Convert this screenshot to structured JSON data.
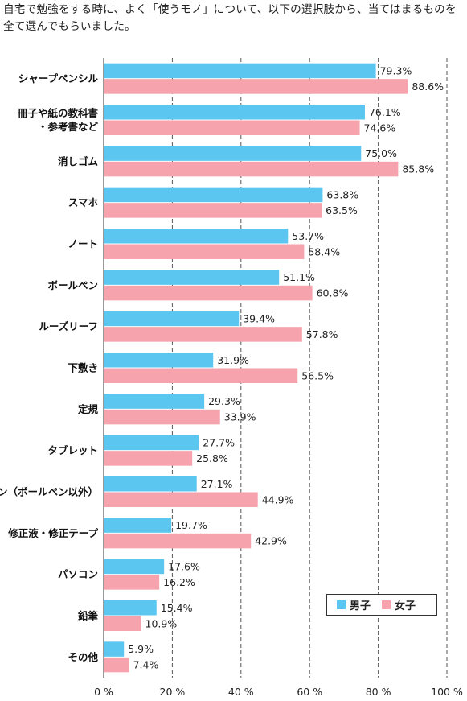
{
  "title": "自宅で勉強をする時に、よく「使うモノ」について、以下の選択肢から、当てはまるものを全て選んでもらいました。",
  "colors": {
    "male": "#5bc6f0",
    "female": "#f6a3ad",
    "grid": "#555555"
  },
  "chart_data": {
    "type": "bar",
    "orientation": "horizontal",
    "categories": [
      [
        "シャープペンシル"
      ],
      [
        "冊子や紙の教科書",
        "・参考書など"
      ],
      [
        "消しゴム"
      ],
      [
        "スマホ"
      ],
      [
        "ノート"
      ],
      [
        "ボールペン"
      ],
      [
        "ルーズリーフ"
      ],
      [
        "下敷き"
      ],
      [
        "定規"
      ],
      [
        "タブレット"
      ],
      [
        "ペン（ボールペン以外）"
      ],
      [
        "修正液・修正テープ"
      ],
      [
        "パソコン"
      ],
      [
        "鉛筆"
      ],
      [
        "その他"
      ]
    ],
    "series": [
      {
        "name": "男子",
        "color": "#5bc6f0",
        "values": [
          79.3,
          76.1,
          75.0,
          63.8,
          53.7,
          51.1,
          39.4,
          31.9,
          29.3,
          27.7,
          27.1,
          19.7,
          17.6,
          15.4,
          5.9
        ],
        "labels": [
          "79.3%",
          "76.1%",
          "75.0%",
          "63.8%",
          "53.7%",
          "51.1%",
          "39.4%",
          "31.9%",
          "29.3%",
          "27.7%",
          "27.1%",
          "19.7%",
          "17.6%",
          "15.4%",
          "5.9%"
        ]
      },
      {
        "name": "女子",
        "color": "#f6a3ad",
        "values": [
          88.6,
          74.6,
          85.8,
          63.5,
          58.4,
          60.8,
          57.8,
          56.5,
          33.9,
          25.8,
          44.9,
          42.9,
          16.2,
          10.9,
          7.4
        ],
        "labels": [
          "88.6%",
          "74.6%",
          "85.8%",
          "63.5%",
          "58.4%",
          "60.8%",
          "57.8%",
          "56.5%",
          "33.9%",
          "25.8%",
          "44.9%",
          "42.9%",
          "16.2%",
          "10.9%",
          "7.4%"
        ]
      }
    ],
    "xlim": [
      0,
      100
    ],
    "ticks": [
      0,
      20,
      40,
      60,
      80,
      100
    ],
    "tick_labels": [
      "0 %",
      "20 %",
      "40 %",
      "60 %",
      "80 %",
      "100 %"
    ],
    "grid": "vertical dashed",
    "legend": {
      "position": "bottom-right",
      "items": [
        "男子",
        "女子"
      ]
    }
  }
}
